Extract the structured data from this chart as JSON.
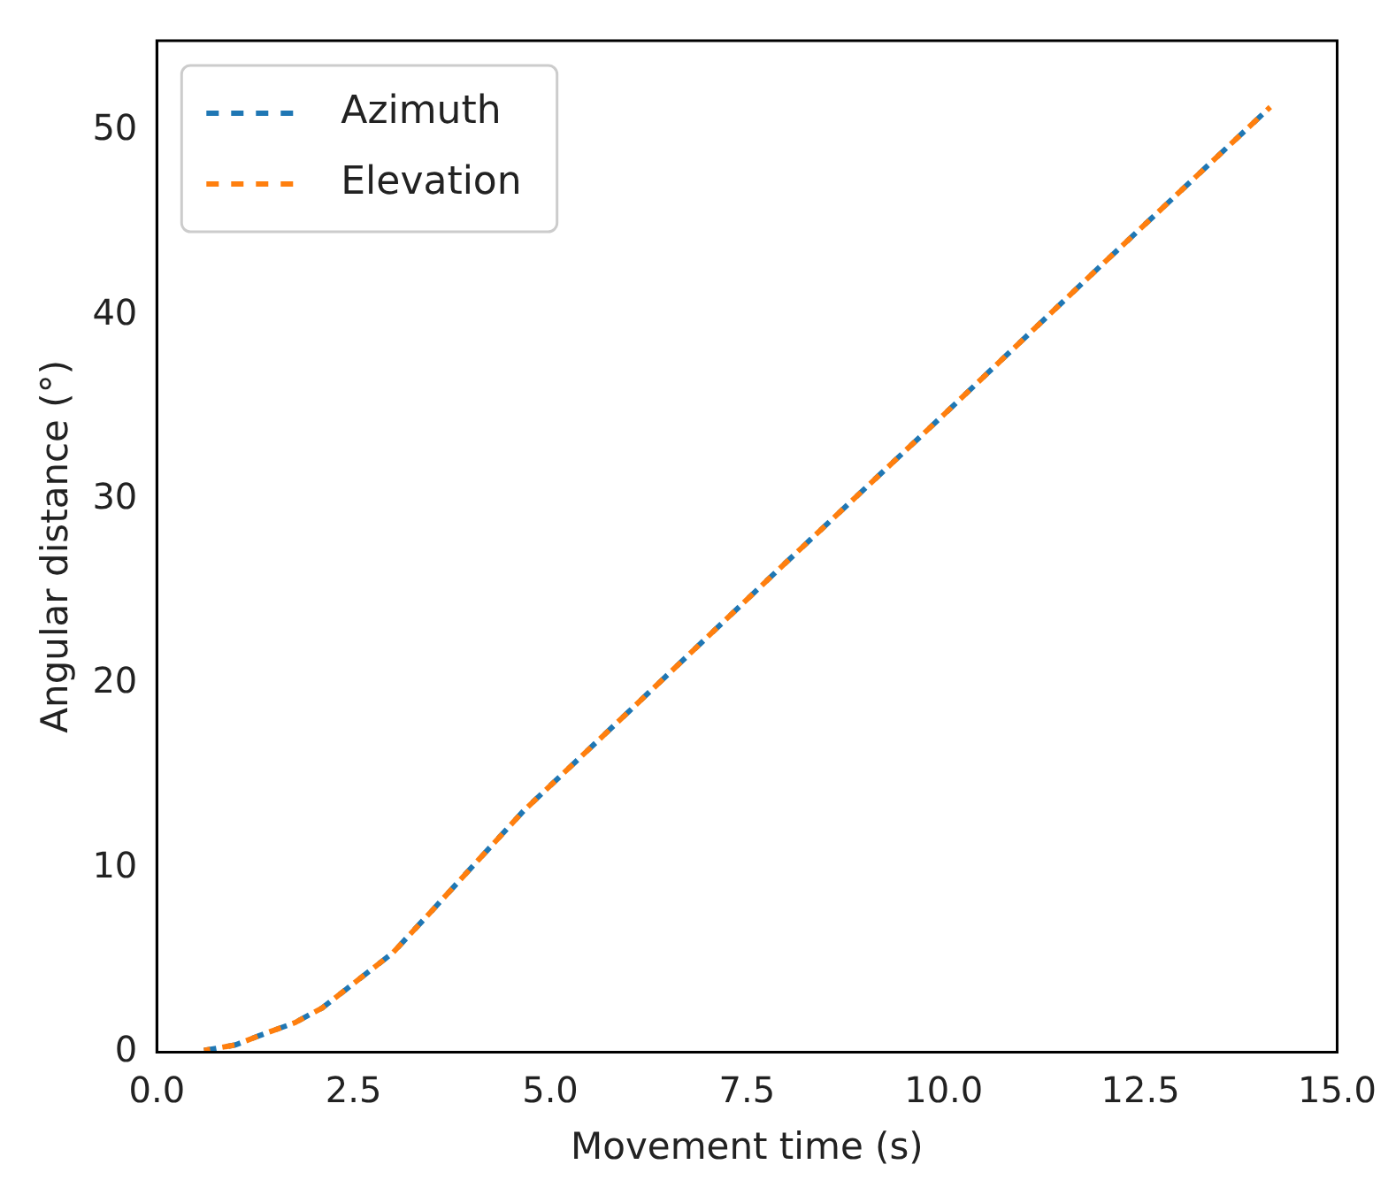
{
  "chart_data": {
    "type": "line",
    "xlabel": "Movement time (s)",
    "ylabel": "Angular distance (°)",
    "xlim": [
      0,
      15
    ],
    "xticks": [
      {
        "value": 0,
        "label": "0.0"
      },
      {
        "value": 2.5,
        "label": "2.5"
      },
      {
        "value": 5,
        "label": "5.0"
      },
      {
        "value": 7.5,
        "label": "7.5"
      },
      {
        "value": 10,
        "label": "10.0"
      },
      {
        "value": 12.5,
        "label": "12.5"
      },
      {
        "value": 15,
        "label": "15.0"
      }
    ],
    "ylim": [
      0,
      54.9
    ],
    "yticks": [
      0,
      10,
      20,
      30,
      40,
      50
    ],
    "grid": false,
    "legend": "top left",
    "marker": "none",
    "line_style": "dashed",
    "series": [
      {
        "name": "Azimuth",
        "color": "#1f77b4",
        "x": [
          0.6,
          1.0,
          1.3,
          1.75,
          2.1,
          2.4,
          3.0,
          3.5,
          4.1,
          4.66,
          6,
          8,
          10,
          12,
          14.15
        ],
        "values": [
          0.1,
          0.4,
          0.9,
          1.6,
          2.4,
          3.4,
          5.4,
          7.7,
          10.5,
          13.1,
          18.5,
          26.6,
          34.6,
          42.7,
          51.3
        ]
      },
      {
        "name": "Elevation",
        "color": "#ff7f0e",
        "x": [
          0.6,
          1.0,
          1.3,
          1.75,
          2.1,
          2.4,
          3.0,
          3.5,
          4.1,
          4.66,
          6,
          8,
          10,
          12,
          14.15
        ],
        "values": [
          0.1,
          0.4,
          0.9,
          1.6,
          2.4,
          3.4,
          5.4,
          7.7,
          10.5,
          13.1,
          18.5,
          26.6,
          34.6,
          42.7,
          51.3
        ]
      }
    ]
  }
}
